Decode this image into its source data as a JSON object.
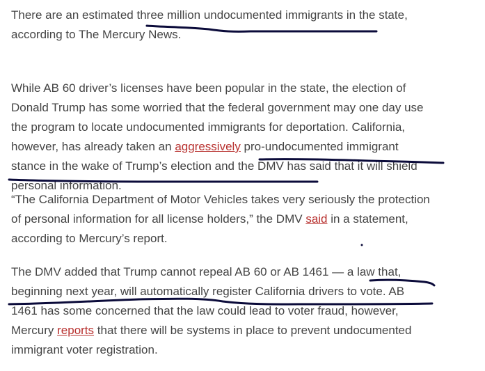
{
  "colors": {
    "text": "#444444",
    "link": "#b8312f",
    "annotation_ink": "#0b0b3a"
  },
  "paragraphs": [
    {
      "lines": [
        [
          {
            "text": "There are an estimated three million undocumented immigrants in the state,"
          }
        ],
        [
          {
            "text": "according to The Mercury News."
          }
        ]
      ]
    },
    {
      "lines": [
        [
          {
            "text": "While AB 60 driver’s licenses have been popular in the state, the election of"
          }
        ],
        [
          {
            "text": "Donald Trump has some worried that the federal government may one day use"
          }
        ],
        [
          {
            "text": "the program to locate undocumented immigrants for deportation. California,"
          }
        ],
        [
          {
            "text": "however, has already taken an "
          },
          {
            "text": "aggressively",
            "link": true
          },
          {
            "text": " pro-undocumented immigrant"
          }
        ],
        [
          {
            "text": "stance in the wake of Trump’s election and the DMV has said that it will shield"
          }
        ],
        [
          {
            "text": "personal information."
          }
        ]
      ]
    },
    {
      "lines": [
        [
          {
            "text": "“The California Department of Motor Vehicles takes very seriously the protection"
          }
        ],
        [
          {
            "text": "of personal information for all license holders,” the DMV "
          },
          {
            "text": "said",
            "link": true
          },
          {
            "text": " in a statement,"
          }
        ],
        [
          {
            "text": "according to Mercury’s report."
          }
        ]
      ]
    },
    {
      "lines": [
        [
          {
            "text": "The DMV added that Trump cannot repeal AB 60 or AB 1461 — a law that,"
          }
        ],
        [
          {
            "text": "beginning next year, will automatically register California drivers to vote. AB"
          }
        ],
        [
          {
            "text": "1461 has some concerned that the law could lead to voter fraud, however,"
          }
        ],
        [
          {
            "text": "Mercury "
          },
          {
            "text": "reports",
            "link": true
          },
          {
            "text": " that there will be systems in place to prevent undocumented"
          }
        ],
        [
          {
            "text": "immigrant voter registration."
          }
        ]
      ]
    }
  ]
}
